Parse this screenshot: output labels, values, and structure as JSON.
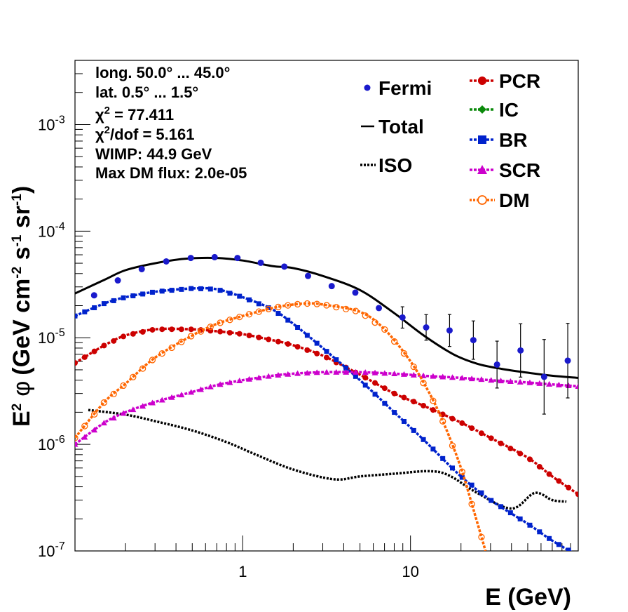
{
  "chart_data": {
    "type": "line",
    "xlabel": "E (GeV)",
    "ylabel_parts": {
      "e": "E",
      "e_sup": "2",
      "phi": "φ",
      "units_open": "(GeV cm",
      "cm_sup": "-2",
      "s": " s",
      "s_sup": "-1",
      "sr": " sr",
      "sr_sup": "-1",
      "close": ")"
    },
    "xscale": "log",
    "yscale": "log",
    "xlim": [
      0.1,
      100
    ],
    "ylim": [
      1e-07,
      0.004
    ],
    "x_tick_labels": [
      {
        "value": 1,
        "label": "1"
      },
      {
        "value": 10,
        "label": "10"
      }
    ],
    "y_tick_labels": [
      {
        "value": 1e-07,
        "base": "10",
        "exp": "-7"
      },
      {
        "value": 1e-06,
        "base": "10",
        "exp": "-6"
      },
      {
        "value": 1e-05,
        "base": "10",
        "exp": "-5"
      },
      {
        "value": 0.0001,
        "base": "10",
        "exp": "-4"
      },
      {
        "value": 0.001,
        "base": "10",
        "exp": "-3"
      }
    ],
    "info": {
      "long": "long. 50.0° ... 45.0°",
      "lat": "lat. 0.5° ... 1.5°",
      "chi2_sym": "χ",
      "chi2_sup": "2",
      "chi2_val": " = 77.411",
      "chi2dof_sym": "χ",
      "chi2dof_sup": "2",
      "chi2dof_val": "/dof = 5.161",
      "wimp": "WIMP: 44.9 GeV",
      "maxdm": "Max DM flux: 2.0e-05"
    },
    "legend": {
      "fermi": "Fermi",
      "total": "Total",
      "iso": "ISO",
      "pcr": "PCR",
      "ic": "IC",
      "br": "BR",
      "scr": "SCR",
      "dm": "DM"
    },
    "colors": {
      "fermi": "#1a1acc",
      "total": "#000000",
      "iso": "#000000",
      "pcr": "#cc0000",
      "ic": "#0a8a0a",
      "br": "#0022cc",
      "scr": "#cc00cc",
      "dm": "#ff6600"
    },
    "fermi_points": [
      {
        "x": 0.13,
        "y": 2.5e-05,
        "err": 0
      },
      {
        "x": 0.18,
        "y": 3.45e-05,
        "err": 0
      },
      {
        "x": 0.25,
        "y": 4.4e-05,
        "err": 0
      },
      {
        "x": 0.35,
        "y": 5.2e-05,
        "err": 0
      },
      {
        "x": 0.49,
        "y": 5.6e-05,
        "err": 0
      },
      {
        "x": 0.68,
        "y": 5.7e-05,
        "err": 0
      },
      {
        "x": 0.93,
        "y": 5.6e-05,
        "err": 0
      },
      {
        "x": 1.28,
        "y": 5.05e-05,
        "err": 0
      },
      {
        "x": 1.77,
        "y": 4.65e-05,
        "err": 0
      },
      {
        "x": 2.45,
        "y": 3.8e-05,
        "err": 0
      },
      {
        "x": 3.39,
        "y": 3.05e-05,
        "err": 0
      },
      {
        "x": 4.69,
        "y": 2.65e-05,
        "err": 0
      },
      {
        "x": 6.48,
        "y": 1.9e-05,
        "err": 0
      },
      {
        "x": 8.96,
        "y": 1.55e-05,
        "err": 0.1
      },
      {
        "x": 12.4,
        "y": 1.25e-05,
        "err": 0.12
      },
      {
        "x": 17.1,
        "y": 1.17e-05,
        "err": 0.15
      },
      {
        "x": 23.7,
        "y": 9.5e-06,
        "err": 0.18
      },
      {
        "x": 32.8,
        "y": 5.6e-06,
        "err": 0.22
      },
      {
        "x": 45.3,
        "y": 7.6e-06,
        "err": 0.25
      },
      {
        "x": 62.6,
        "y": 4.3e-06,
        "err": 0.35
      },
      {
        "x": 86.6,
        "y": 6.1e-06,
        "err": 0.35
      }
    ],
    "series": [
      {
        "key": "total",
        "style": "solid",
        "points": [
          [
            0.1,
            2.6e-05
          ],
          [
            0.15,
            3.5e-05
          ],
          [
            0.2,
            4.3e-05
          ],
          [
            0.3,
            5e-05
          ],
          [
            0.45,
            5.5e-05
          ],
          [
            0.7,
            5.6e-05
          ],
          [
            1.0,
            5.3e-05
          ],
          [
            1.5,
            4.7e-05
          ],
          [
            2.0,
            4.5e-05
          ],
          [
            3.0,
            3.8e-05
          ],
          [
            5.0,
            2.8e-05
          ],
          [
            8.0,
            1.7e-05
          ],
          [
            12,
            1.05e-05
          ],
          [
            18,
            7e-06
          ],
          [
            25,
            5.7e-06
          ],
          [
            35,
            5.1e-06
          ],
          [
            50,
            4.7e-06
          ],
          [
            70,
            4.4e-06
          ],
          [
            100,
            4.2e-06
          ]
        ]
      },
      {
        "key": "iso",
        "style": "dotted",
        "points": [
          [
            0.12,
            2.1e-06
          ],
          [
            0.2,
            1.9e-06
          ],
          [
            0.3,
            1.65e-06
          ],
          [
            0.5,
            1.35e-06
          ],
          [
            0.8,
            1.05e-06
          ],
          [
            1.2,
            8e-07
          ],
          [
            2.0,
            5.8e-07
          ],
          [
            3.5,
            4.7e-07
          ],
          [
            5.0,
            5e-07
          ],
          [
            8.0,
            5.3e-07
          ],
          [
            13,
            5.6e-07
          ],
          [
            17,
            5.1e-07
          ],
          [
            25,
            3.5e-07
          ],
          [
            40,
            2.5e-07
          ],
          [
            55,
            3.5e-07
          ],
          [
            70,
            3e-07
          ],
          [
            85,
            2.9e-07
          ]
        ]
      },
      {
        "key": "pcr",
        "style": "dash-marker",
        "marker": "circle",
        "points": [
          [
            0.1,
            5.8e-06
          ],
          [
            0.15,
            8.5e-06
          ],
          [
            0.2,
            1.05e-05
          ],
          [
            0.3,
            1.2e-05
          ],
          [
            0.5,
            1.2e-05
          ],
          [
            0.7,
            1.15e-05
          ],
          [
            1.0,
            1.08e-05
          ],
          [
            1.5,
            9.5e-06
          ],
          [
            2.0,
            8.5e-06
          ],
          [
            3.0,
            6.8e-06
          ],
          [
            5.0,
            4.5e-06
          ],
          [
            8.0,
            3e-06
          ],
          [
            12,
            2.3e-06
          ],
          [
            20,
            1.6e-06
          ],
          [
            30,
            1.15e-06
          ],
          [
            50,
            7.5e-07
          ],
          [
            70,
            5e-07
          ],
          [
            100,
            3.4e-07
          ]
        ]
      },
      {
        "key": "br",
        "style": "dash-marker",
        "marker": "square",
        "points": [
          [
            0.1,
            1.6e-05
          ],
          [
            0.15,
            2.1e-05
          ],
          [
            0.2,
            2.4e-05
          ],
          [
            0.3,
            2.7e-05
          ],
          [
            0.5,
            2.9e-05
          ],
          [
            0.7,
            2.85e-05
          ],
          [
            1.0,
            2.4e-05
          ],
          [
            1.5,
            1.85e-05
          ],
          [
            2.0,
            1.35e-05
          ],
          [
            3.0,
            8e-06
          ],
          [
            5.0,
            4e-06
          ],
          [
            8.0,
            2e-06
          ],
          [
            12,
            1.1e-06
          ],
          [
            20,
            5e-07
          ],
          [
            30,
            3e-07
          ],
          [
            50,
            1.8e-07
          ],
          [
            70,
            1.25e-07
          ],
          [
            100,
            9e-08
          ]
        ]
      },
      {
        "key": "scr",
        "style": "dash-marker",
        "marker": "triangle",
        "points": [
          [
            0.1,
            1e-06
          ],
          [
            0.15,
            1.6e-06
          ],
          [
            0.2,
            2e-06
          ],
          [
            0.3,
            2.5e-06
          ],
          [
            0.5,
            3.1e-06
          ],
          [
            0.7,
            3.6e-06
          ],
          [
            1.0,
            4e-06
          ],
          [
            1.5,
            4.4e-06
          ],
          [
            2.0,
            4.6e-06
          ],
          [
            3.0,
            4.75e-06
          ],
          [
            5.0,
            4.75e-06
          ],
          [
            8.0,
            4.6e-06
          ],
          [
            12,
            4.4e-06
          ],
          [
            20,
            4.2e-06
          ],
          [
            30,
            4e-06
          ],
          [
            50,
            3.8e-06
          ],
          [
            70,
            3.65e-06
          ],
          [
            100,
            3.5e-06
          ]
        ]
      },
      {
        "key": "dm",
        "style": "dash-marker",
        "marker": "open-circle",
        "points": [
          [
            0.1,
            1.15e-06
          ],
          [
            0.15,
            2.5e-06
          ],
          [
            0.2,
            3.7e-06
          ],
          [
            0.3,
            6.5e-06
          ],
          [
            0.5,
            1.05e-05
          ],
          [
            0.7,
            1.35e-05
          ],
          [
            1.0,
            1.6e-05
          ],
          [
            1.5,
            1.9e-05
          ],
          [
            2.0,
            2.05e-05
          ],
          [
            2.5,
            2.1e-05
          ],
          [
            3.0,
            2.05e-05
          ],
          [
            5.0,
            1.75e-05
          ],
          [
            7.0,
            1.2e-05
          ],
          [
            10,
            6e-06
          ],
          [
            13,
            3e-06
          ],
          [
            16,
            1.5e-06
          ],
          [
            20,
            6e-07
          ],
          [
            24,
            2.3e-07
          ],
          [
            28,
            1e-07
          ]
        ]
      }
    ]
  }
}
